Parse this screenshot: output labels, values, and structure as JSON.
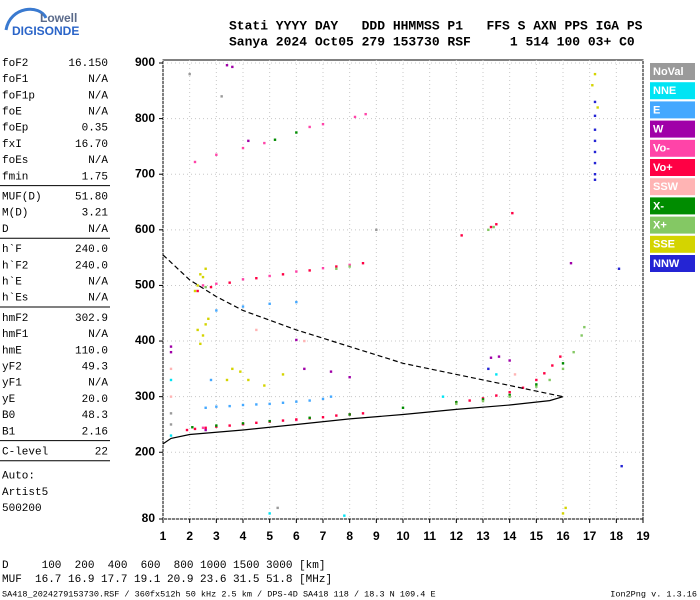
{
  "logo": {
    "line1": "Lowell",
    "line2": "DIGISONDE"
  },
  "header": {
    "line1": "Stati YYYY DAY   DDD HHMMSS P1   FFS S AXN PPS IGA PS",
    "line2": "Sanya 2024 Oct05 279 153730 RSF     1 514 100 03+ C0"
  },
  "parameters": [
    [
      {
        "name": "foF2",
        "value": "16.150"
      },
      {
        "name": "foF1",
        "value": "N/A"
      },
      {
        "name": "foF1p",
        "value": "N/A"
      },
      {
        "name": "foE",
        "value": "N/A"
      },
      {
        "name": "foEp",
        "value": "0.35"
      },
      {
        "name": "fxI",
        "value": "16.70"
      },
      {
        "name": "foEs",
        "value": "N/A"
      },
      {
        "name": "fmin",
        "value": "1.75"
      }
    ],
    [
      {
        "name": "MUF(D)",
        "value": "51.80"
      },
      {
        "name": "M(D)",
        "value": "3.21"
      },
      {
        "name": "D",
        "value": "N/A"
      }
    ],
    [
      {
        "name": "h`F",
        "value": "240.0"
      },
      {
        "name": "h`F2",
        "value": "240.0"
      },
      {
        "name": "h`E",
        "value": "N/A"
      },
      {
        "name": "h`Es",
        "value": "N/A"
      }
    ],
    [
      {
        "name": "hmF2",
        "value": "302.9"
      },
      {
        "name": "hmF1",
        "value": "N/A"
      },
      {
        "name": "hmE",
        "value": "110.0"
      },
      {
        "name": "yF2",
        "value": "49.3"
      },
      {
        "name": "yF1",
        "value": "N/A"
      },
      {
        "name": "yE",
        "value": "20.0"
      },
      {
        "name": "B0",
        "value": "48.3"
      },
      {
        "name": "B1",
        "value": "2.16"
      }
    ],
    [
      {
        "name": "C-level",
        "value": "22"
      }
    ]
  ],
  "autoscaling": [
    "Auto:",
    "Artist5",
    "500200"
  ],
  "muf_table": [
    "D     100  200  400  600  800 1000 1500 3000 [km]",
    "MUF  16.7 16.9 17.7 19.1 20.9 23.6 31.5 51.8 [MHz]"
  ],
  "footer": {
    "file": "SA418_2024279153730.RSF / 360fx512h 50 kHz 2.5 km / DPS-4D SA418 118 / 18.3 N 109.4 E",
    "version": "Ion2Png v. 1.3.16"
  },
  "chart_data": {
    "type": "scatter",
    "xlim": [
      1,
      19
    ],
    "ylim": [
      80,
      900
    ],
    "xticks": [
      1,
      2,
      3,
      4,
      5,
      6,
      7,
      8,
      9,
      10,
      11,
      12,
      13,
      14,
      15,
      16,
      17,
      18,
      19
    ],
    "yticks": [
      80,
      200,
      300,
      400,
      500,
      600,
      700,
      800,
      900
    ],
    "grid": true,
    "legend": "right",
    "series": [
      {
        "name": "NoVal",
        "color": "#9a9a9a",
        "x": [
          1.3,
          1.3,
          3.2,
          5.3,
          2,
          9
        ],
        "values": [
          250,
          270,
          840,
          100,
          880,
          600
        ]
      },
      {
        "name": "NNE",
        "color": "#00e4f4",
        "x": [
          1.3,
          1.3,
          5,
          7.8,
          11.5,
          13.5
        ],
        "values": [
          230,
          330,
          90,
          86,
          300,
          340
        ]
      },
      {
        "name": "E",
        "color": "#44a8ff",
        "x": [
          2.6,
          3,
          3.5,
          4,
          4.5,
          5,
          5.5,
          6,
          6.5,
          7,
          7.3,
          3,
          4,
          5,
          6,
          2.8
        ],
        "values": [
          280,
          282,
          283,
          285,
          286,
          287,
          289,
          291,
          293,
          296,
          300,
          455,
          462,
          467,
          470,
          330
        ]
      },
      {
        "name": "W",
        "color": "#a000a8",
        "x": [
          1.3,
          1.3,
          2.6,
          3.4,
          3.6,
          4.2,
          6,
          6.3,
          7.3,
          8,
          13.3,
          13.6,
          14,
          16.3
        ],
        "values": [
          390,
          380,
          240,
          896,
          893,
          760,
          402,
          350,
          345,
          335,
          370,
          372,
          365,
          540
        ]
      },
      {
        "name": "Vo-",
        "color": "#ff44a8",
        "x": [
          2.5,
          3,
          4,
          5,
          6,
          7,
          8,
          2.2,
          3,
          4,
          4.8,
          6.5,
          7,
          8.2,
          8.6,
          2.5,
          4,
          6,
          8
        ],
        "values": [
          500,
          503,
          511,
          517,
          525,
          531,
          537,
          722,
          735,
          747,
          756,
          785,
          790,
          803,
          808,
          244,
          250,
          258,
          268
        ]
      },
      {
        "name": "Vo+",
        "color": "#ff0044",
        "x": [
          1.9,
          2.2,
          2.6,
          3,
          3.5,
          4,
          4.5,
          5,
          5.5,
          6,
          6.5,
          7,
          7.5,
          8,
          8.5,
          12,
          12.5,
          13,
          13.5,
          14,
          14.5,
          15,
          15.3,
          15.6,
          15.9,
          2.3,
          2.8,
          3.5,
          4.5,
          5.5,
          6.5,
          7.5,
          8.5,
          12.2,
          13.3,
          13.5,
          14.1
        ],
        "values": [
          240,
          242,
          244,
          246,
          248,
          251,
          253,
          255,
          257,
          259,
          261,
          263,
          266,
          268,
          270,
          290,
          293,
          297,
          302,
          308,
          316,
          330,
          342,
          356,
          372,
          490,
          497,
          505,
          513,
          520,
          527,
          534,
          540,
          590,
          605,
          610,
          630
        ]
      },
      {
        "name": "SSW",
        "color": "#ffb4b4",
        "x": [
          1.3,
          1.3,
          14.2,
          6.3,
          4.5
        ],
        "values": [
          300,
          350,
          340,
          400,
          420
        ]
      },
      {
        "name": "X-",
        "color": "#008c00",
        "x": [
          2.1,
          3,
          4,
          5,
          6.5,
          8,
          10,
          12,
          13,
          14,
          15,
          16,
          5.2,
          6
        ],
        "values": [
          245,
          248,
          252,
          256,
          262,
          268,
          280,
          290,
          295,
          303,
          322,
          360,
          762,
          775
        ]
      },
      {
        "name": "X+",
        "color": "#84c864",
        "x": [
          12,
          13,
          14,
          15,
          15.5,
          16,
          16.4,
          16.7,
          16.8,
          13.2,
          13.4,
          8,
          7.5,
          2.6
        ],
        "values": [
          287,
          292,
          300,
          318,
          330,
          350,
          380,
          410,
          425,
          600,
          605,
          534,
          530,
          497
        ]
      },
      {
        "name": "SSE",
        "color": "#d4d400",
        "x": [
          2.2,
          2.3,
          2.4,
          2.5,
          2.6,
          2.3,
          2.5,
          2.6,
          2.4,
          2.7,
          3.4,
          3.6,
          3.9,
          4.2,
          4.8,
          5.5,
          17.2,
          17.1,
          17.3,
          16,
          16.1
        ],
        "values": [
          490,
          500,
          520,
          515,
          530,
          420,
          410,
          430,
          395,
          440,
          330,
          350,
          345,
          330,
          320,
          340,
          880,
          860,
          820,
          90,
          100
        ]
      },
      {
        "name": "NNW",
        "color": "#2424d4",
        "x": [
          17.2,
          17.2,
          17.2,
          17.2,
          17.2,
          17.2,
          17.2,
          17.2,
          18.2,
          18.1,
          13.2
        ],
        "values": [
          690,
          700,
          720,
          740,
          760,
          780,
          805,
          830,
          175,
          530,
          350
        ]
      }
    ],
    "profiles": [
      {
        "style": "dashed",
        "color": "#000000",
        "x": [
          1,
          2,
          3,
          4,
          6,
          8,
          10,
          12,
          14,
          15,
          16
        ],
        "values": [
          555,
          510,
          480,
          455,
          420,
          390,
          360,
          340,
          320,
          310,
          300
        ]
      },
      {
        "style": "solid",
        "color": "#000000",
        "x": [
          1,
          1.3,
          2,
          4,
          6,
          8,
          10,
          12,
          14,
          15.5,
          16
        ],
        "values": [
          215,
          225,
          232,
          240,
          250,
          260,
          268,
          277,
          285,
          293,
          300
        ]
      }
    ]
  }
}
